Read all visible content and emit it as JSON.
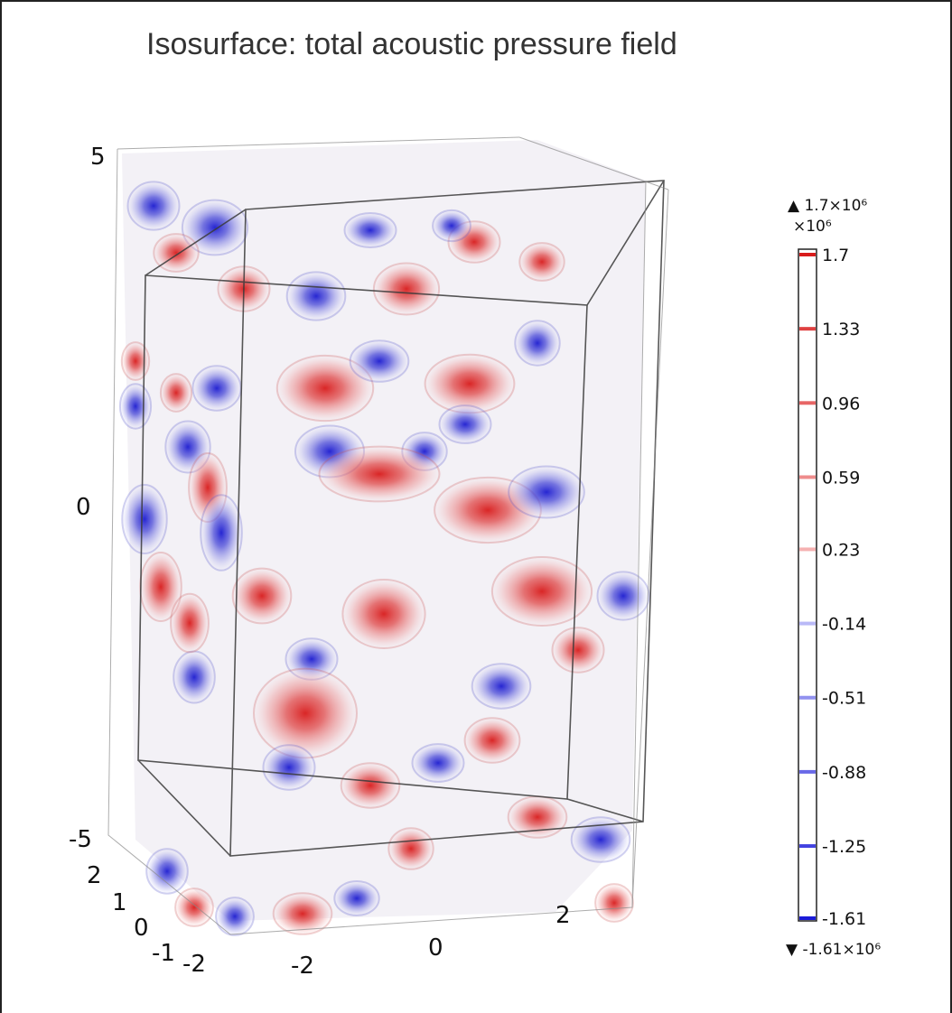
{
  "title": "Isosurface: total acoustic pressure field",
  "chart_data": {
    "type": "isosurface-3d",
    "title": "Isosurface: total acoustic pressure field",
    "z_ticks": [
      "5",
      "0",
      "-5"
    ],
    "y_ticks": [
      "2",
      "1",
      "0",
      "-1",
      "-2"
    ],
    "x_ticks": [
      "-2",
      "0",
      "2"
    ],
    "colorbar": {
      "max_label": "1.7×10⁶",
      "min_label": "-1.61×10⁶",
      "multiplier": "×10⁶",
      "max_value": 1700000.0,
      "min_value": -1610000.0,
      "levels": [
        1.7,
        1.33,
        0.96,
        0.59,
        0.23,
        -0.14,
        -0.51,
        -0.88,
        -1.25,
        -1.61
      ],
      "level_labels": [
        "1.7",
        "1.33",
        "0.96",
        "0.59",
        "0.23",
        "-0.14",
        "-0.51",
        "-0.88",
        "-1.25",
        "-1.61"
      ]
    },
    "colors": {
      "positive": "#d81b1b",
      "negative": "#1b1bd8",
      "neutral": "#f2f2f2"
    }
  }
}
